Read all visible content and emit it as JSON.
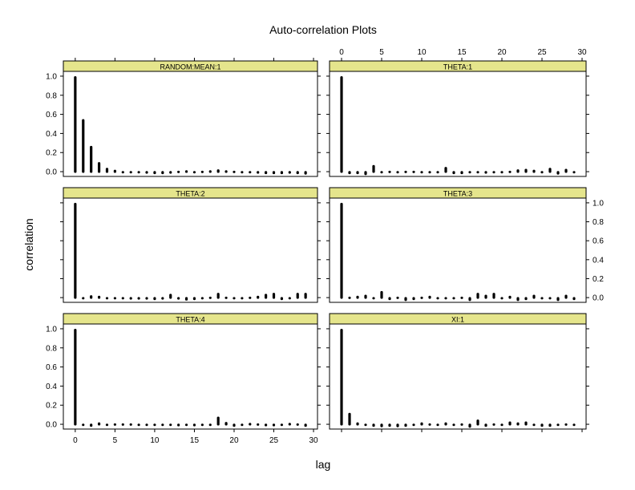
{
  "title": "Auto-correlation Plots",
  "xlabel": "lag",
  "ylabel": "correlation",
  "x_ticks": [
    0,
    5,
    10,
    15,
    20,
    25,
    30
  ],
  "y_ticks": [
    0.0,
    0.2,
    0.4,
    0.6,
    0.8,
    1.0
  ],
  "x_tick_labels": [
    "0",
    "5",
    "10",
    "15",
    "20",
    "25",
    "30"
  ],
  "y_tick_labels": [
    "0.0",
    "0.2",
    "0.4",
    "0.6",
    "0.8",
    "1.0"
  ],
  "colors": {
    "strip_fill": "#e5e58c",
    "line": "#000000",
    "background": "#ffffff"
  },
  "chart_data": [
    {
      "type": "bar",
      "panel": "RANDOM:MEAN:1",
      "xlim": [
        -1.5,
        30.5
      ],
      "ylim": [
        -0.05,
        1.05
      ],
      "x": [
        0,
        1,
        2,
        3,
        4,
        5,
        6,
        7,
        8,
        9,
        10,
        11,
        12,
        13,
        14,
        15,
        16,
        17,
        18,
        19,
        20,
        21,
        22,
        23,
        24,
        25,
        26,
        27,
        28,
        29
      ],
      "values": [
        1.0,
        0.55,
        0.27,
        0.1,
        0.04,
        0.02,
        0.0,
        -0.005,
        -0.01,
        -0.015,
        -0.02,
        -0.02,
        -0.015,
        0.01,
        0.015,
        0.005,
        0.01,
        0.015,
        0.025,
        0.015,
        0.01,
        0.0,
        -0.01,
        -0.015,
        -0.02,
        -0.02,
        -0.02,
        -0.015,
        -0.02,
        -0.025
      ]
    },
    {
      "type": "bar",
      "panel": "THETA:1",
      "xlim": [
        -1.5,
        30.5
      ],
      "ylim": [
        -0.05,
        1.05
      ],
      "x": [
        0,
        1,
        2,
        3,
        4,
        5,
        6,
        7,
        8,
        9,
        10,
        11,
        12,
        13,
        14,
        15,
        16,
        17,
        18,
        19,
        20,
        21,
        22,
        23,
        24,
        25,
        26,
        27,
        28,
        29
      ],
      "values": [
        1.0,
        -0.02,
        -0.02,
        -0.03,
        0.07,
        0.005,
        0.01,
        -0.005,
        0.01,
        0.01,
        0.005,
        -0.005,
        0.005,
        0.05,
        -0.02,
        -0.02,
        0.005,
        -0.01,
        -0.015,
        0.005,
        0.005,
        0.01,
        0.025,
        0.03,
        0.02,
        0.005,
        0.04,
        -0.025,
        0.03,
        0.005
      ]
    },
    {
      "type": "bar",
      "panel": "THETA:2",
      "xlim": [
        -1.5,
        30.5
      ],
      "ylim": [
        -0.05,
        1.05
      ],
      "x": [
        0,
        1,
        2,
        3,
        4,
        5,
        6,
        7,
        8,
        9,
        10,
        11,
        12,
        13,
        14,
        15,
        16,
        17,
        18,
        19,
        20,
        21,
        22,
        23,
        24,
        25,
        26,
        27,
        28,
        29
      ],
      "values": [
        1.0,
        0.005,
        0.025,
        0.02,
        -0.01,
        0.005,
        0.005,
        -0.015,
        -0.015,
        -0.015,
        -0.02,
        -0.015,
        0.04,
        -0.015,
        -0.025,
        -0.02,
        -0.01,
        0.01,
        0.05,
        0.01,
        -0.01,
        0.005,
        0.01,
        0.02,
        0.04,
        0.05,
        -0.02,
        -0.01,
        0.05,
        0.05
      ]
    },
    {
      "type": "bar",
      "panel": "THETA:3",
      "xlim": [
        -1.5,
        30.5
      ],
      "ylim": [
        -0.05,
        1.05
      ],
      "x": [
        0,
        1,
        2,
        3,
        4,
        5,
        6,
        7,
        8,
        9,
        10,
        11,
        12,
        13,
        14,
        15,
        16,
        17,
        18,
        19,
        20,
        21,
        22,
        23,
        24,
        25,
        26,
        27,
        28,
        29
      ],
      "values": [
        1.0,
        0.01,
        0.02,
        0.03,
        -0.01,
        0.07,
        -0.02,
        0.01,
        -0.03,
        -0.02,
        0.01,
        0.02,
        -0.01,
        0.005,
        0.005,
        0.01,
        -0.03,
        0.05,
        0.03,
        0.05,
        -0.01,
        0.02,
        -0.03,
        -0.02,
        0.03,
        -0.01,
        -0.01,
        -0.03,
        0.03,
        -0.02
      ]
    },
    {
      "type": "bar",
      "panel": "THETA:4",
      "xlim": [
        -1.5,
        30.5
      ],
      "ylim": [
        -0.05,
        1.05
      ],
      "x": [
        0,
        1,
        2,
        3,
        4,
        5,
        6,
        7,
        8,
        9,
        10,
        11,
        12,
        13,
        14,
        15,
        16,
        17,
        18,
        19,
        20,
        21,
        22,
        23,
        24,
        25,
        26,
        27,
        28,
        29
      ],
      "values": [
        1.0,
        0.005,
        -0.02,
        0.02,
        -0.01,
        0.01,
        0.01,
        0.01,
        0.005,
        0.005,
        -0.005,
        -0.01,
        -0.01,
        -0.015,
        -0.01,
        -0.015,
        -0.01,
        -0.01,
        0.08,
        0.025,
        -0.02,
        -0.01,
        0.015,
        0.01,
        -0.015,
        -0.015,
        -0.01,
        0.015,
        0.01,
        -0.02
      ]
    },
    {
      "type": "bar",
      "panel": "XI:1",
      "xlim": [
        -1.5,
        30.5
      ],
      "ylim": [
        -0.05,
        1.05
      ],
      "x": [
        0,
        1,
        2,
        3,
        4,
        5,
        6,
        7,
        8,
        9,
        10,
        11,
        12,
        13,
        14,
        15,
        16,
        17,
        18,
        19,
        20,
        21,
        22,
        23,
        24,
        25,
        26,
        27,
        28,
        29
      ],
      "values": [
        1.0,
        0.12,
        0.02,
        0.005,
        -0.02,
        -0.025,
        -0.02,
        -0.025,
        -0.02,
        -0.01,
        0.02,
        0.01,
        0.005,
        0.02,
        0.005,
        0.01,
        -0.03,
        0.05,
        -0.02,
        0.01,
        0.005,
        0.03,
        0.02,
        0.03,
        -0.01,
        -0.02,
        -0.02,
        0.005,
        0.01,
        -0.01
      ]
    }
  ]
}
